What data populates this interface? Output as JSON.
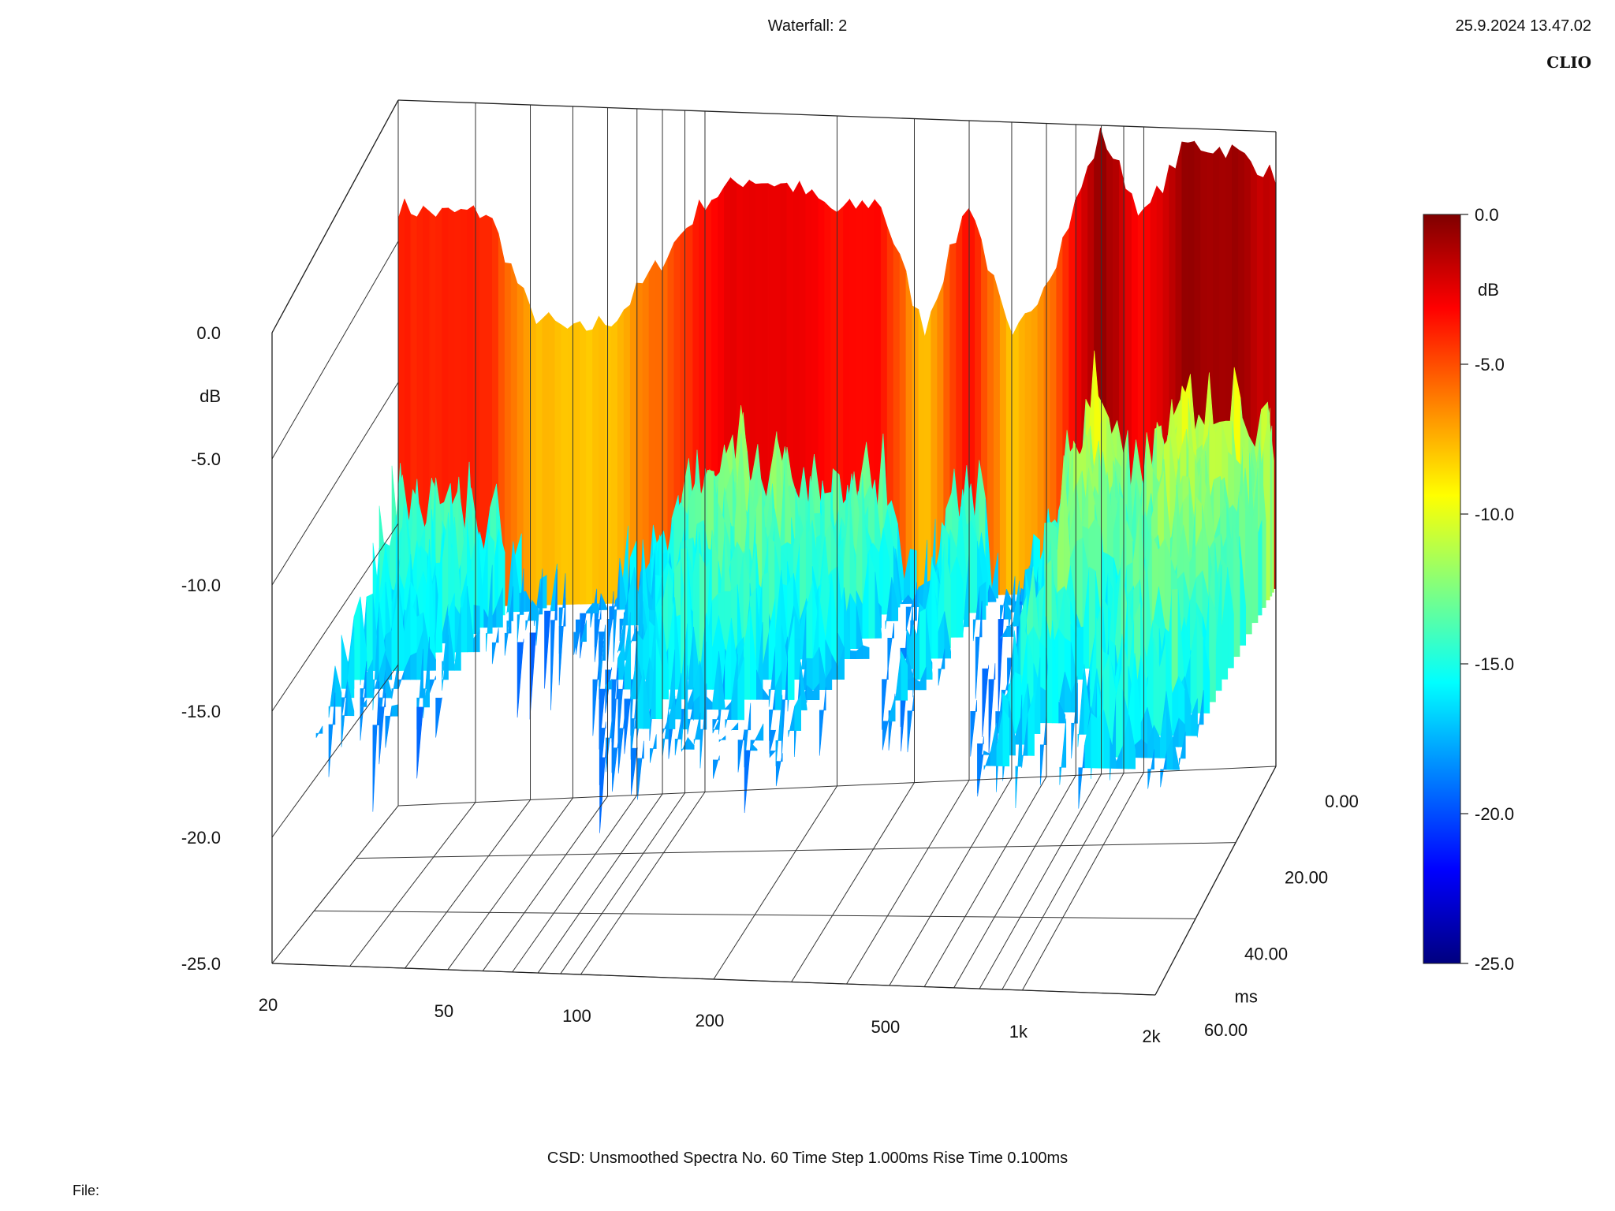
{
  "header": {
    "title": "Waterfall: 2",
    "timestamp": "25.9.2024 13.47.02",
    "brand": "CLIO"
  },
  "footer": {
    "params": "CSD:   Unsmoothed   Spectra No. 60   Time Step 1.000ms   Rise Time 0.100ms",
    "file_label": "File:"
  },
  "colors": {
    "colormap": [
      "#00007f",
      "#0000ff",
      "#0080ff",
      "#00ffff",
      "#80ff80",
      "#ffff00",
      "#ff8000",
      "#ff0000",
      "#7f0000"
    ]
  },
  "chart_data": {
    "type": "waterfall",
    "title": "Waterfall: 2",
    "z_axis": {
      "unit": "dB",
      "range": [
        -25,
        0
      ],
      "ticks": [
        "0.0",
        "-5.0",
        "-10.0",
        "-15.0",
        "-20.0",
        "-25.0"
      ]
    },
    "x_axis": {
      "scale": "log",
      "range": [
        20,
        2000
      ],
      "ticks": [
        "20",
        "50",
        "100",
        "200",
        "500",
        "1k",
        "2k"
      ]
    },
    "time_axis": {
      "unit": "ms",
      "range": [
        0,
        60
      ],
      "ticks": [
        "0.00",
        "20.00",
        "40.00",
        "60.00"
      ]
    },
    "colorbar": {
      "unit": "dB",
      "ticks": [
        "0.0",
        "-5.0",
        "-10.0",
        "-15.0",
        "-20.0",
        "-25.0"
      ]
    },
    "initial_spectrum_db": {
      "freqs": [
        20,
        25,
        32,
        40,
        50,
        63,
        80,
        100,
        125,
        160,
        200,
        250,
        315,
        400,
        500,
        630,
        800,
        1000,
        1250,
        1600,
        2000
      ],
      "values": [
        -3.8,
        -4.0,
        -3.9,
        -7.5,
        -8.2,
        -7.6,
        -5.5,
        -3.3,
        -2.4,
        -2.7,
        -3.6,
        -3.1,
        -8.0,
        -3.0,
        -8.5,
        -5.2,
        -0.3,
        -3.5,
        -0.6,
        -0.8,
        -1.8
      ]
    },
    "spectra_count": 60,
    "time_step_ms": 1.0,
    "rise_time_ms": 0.1
  }
}
